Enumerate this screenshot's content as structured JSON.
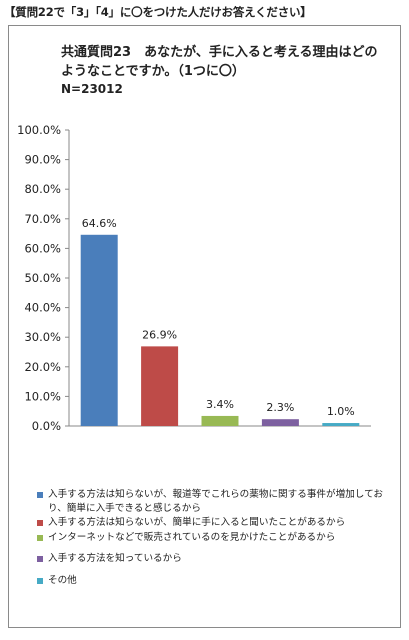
{
  "note": "【質問22で「3」「4」に〇をつけた人だけお答えください】",
  "chart_data": {
    "type": "bar",
    "title": "共通質問23　あなたが、手に入ると考える理由はどのようなことですか。（1つに〇）",
    "subtitle": "N=23012",
    "categories": [
      "入手する方法は知らないが、報道等でこれらの薬物に関する事件が増加しており、簡単に入手できると感じるから",
      "入手する方法は知らないが、簡単に手に入ると聞いたことがあるから",
      "インターネットなどで販売されているのを見かけたことがあるから",
      "入手する方法を知っているから",
      "その他"
    ],
    "values": [
      64.6,
      26.9,
      3.4,
      2.3,
      1.0
    ],
    "value_labels": [
      "64.6%",
      "26.9%",
      "3.4%",
      "2.3%",
      "1.0%"
    ],
    "colors": [
      "#4a7ebb",
      "#be4b48",
      "#98b954",
      "#7d60a0",
      "#46aac5"
    ],
    "ylim": [
      0,
      100
    ],
    "yticks": [
      "0.0%",
      "10.0%",
      "20.0%",
      "30.0%",
      "40.0%",
      "50.0%",
      "60.0%",
      "70.0%",
      "80.0%",
      "90.0%",
      "100.0%"
    ],
    "grid": false,
    "legend_position": "bottom",
    "xlabel": "",
    "ylabel": ""
  }
}
